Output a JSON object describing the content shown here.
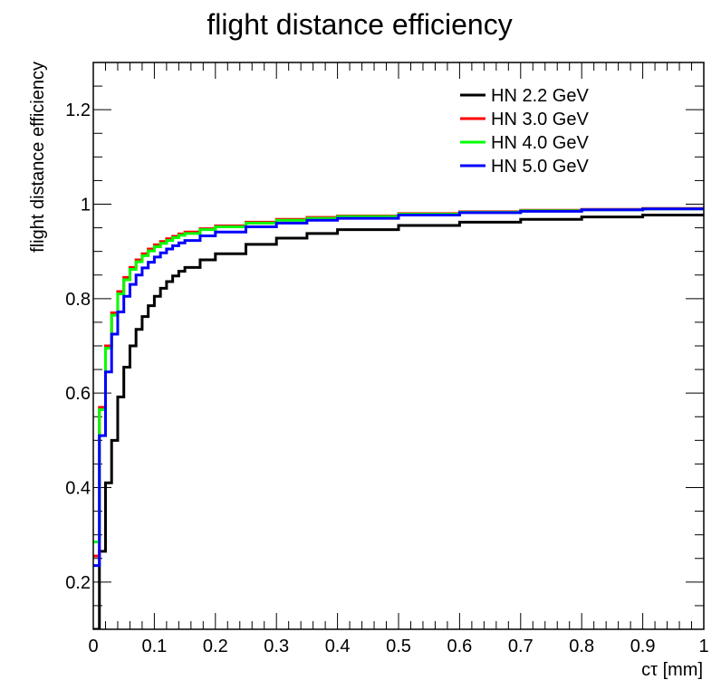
{
  "chart_data": {
    "type": "line",
    "title": "flight distance efficiency",
    "xlabel": "cτ [mm]",
    "ylabel": "flight distance efficiency",
    "xlim": [
      0,
      1
    ],
    "ylim": [
      0.1,
      1.3
    ],
    "x_ticks": [
      0,
      0.1,
      0.2,
      0.3,
      0.4,
      0.5,
      0.6,
      0.7,
      0.8,
      0.9,
      1
    ],
    "x_tick_labels": [
      "0",
      "0.1",
      "0.2",
      "0.3",
      "0.4",
      "0.5",
      "0.6",
      "0.7",
      "0.8",
      "0.9",
      "1"
    ],
    "y_ticks": [
      0.2,
      0.4,
      0.6,
      0.8,
      1.0,
      1.2
    ],
    "y_tick_labels": [
      "0.2",
      "0.4",
      "0.6",
      "0.8",
      "1",
      "1.2"
    ],
    "grid": false,
    "legend_position": "top-right",
    "step": true,
    "x": [
      0.0,
      0.01,
      0.02,
      0.03,
      0.04,
      0.05,
      0.06,
      0.07,
      0.08,
      0.09,
      0.1,
      0.11,
      0.12,
      0.13,
      0.14,
      0.15,
      0.175,
      0.2,
      0.25,
      0.3,
      0.35,
      0.4,
      0.5,
      0.6,
      0.7,
      0.8,
      0.9,
      1.0
    ],
    "series": [
      {
        "name": "HN 2.2 GeV",
        "color": "#000000",
        "values": [
          0.1,
          0.265,
          0.41,
          0.5,
          0.592,
          0.655,
          0.7,
          0.735,
          0.762,
          0.785,
          0.805,
          0.822,
          0.836,
          0.848,
          0.858,
          0.866,
          0.882,
          0.895,
          0.915,
          0.928,
          0.938,
          0.946,
          0.955,
          0.962,
          0.968,
          0.973,
          0.977,
          0.98
        ]
      },
      {
        "name": "HN 3.0 GeV",
        "color": "#ff0000",
        "values": [
          0.255,
          0.57,
          0.7,
          0.77,
          0.815,
          0.845,
          0.866,
          0.882,
          0.895,
          0.905,
          0.914,
          0.921,
          0.927,
          0.932,
          0.937,
          0.941,
          0.948,
          0.954,
          0.962,
          0.968,
          0.972,
          0.975,
          0.98,
          0.984,
          0.987,
          0.989,
          0.991,
          0.992
        ]
      },
      {
        "name": "HN 4.0 GeV",
        "color": "#00ff00",
        "values": [
          0.285,
          0.565,
          0.695,
          0.765,
          0.81,
          0.84,
          0.862,
          0.878,
          0.891,
          0.901,
          0.91,
          0.917,
          0.923,
          0.929,
          0.934,
          0.938,
          0.946,
          0.952,
          0.96,
          0.966,
          0.97,
          0.974,
          0.979,
          0.983,
          0.986,
          0.988,
          0.99,
          0.991
        ]
      },
      {
        "name": "HN 5.0 GeV",
        "color": "#0000ff",
        "values": [
          0.235,
          0.51,
          0.645,
          0.725,
          0.772,
          0.805,
          0.83,
          0.85,
          0.865,
          0.877,
          0.888,
          0.897,
          0.905,
          0.912,
          0.918,
          0.923,
          0.933,
          0.941,
          0.952,
          0.96,
          0.966,
          0.97,
          0.977,
          0.982,
          0.985,
          0.988,
          0.99,
          0.991
        ]
      }
    ]
  }
}
